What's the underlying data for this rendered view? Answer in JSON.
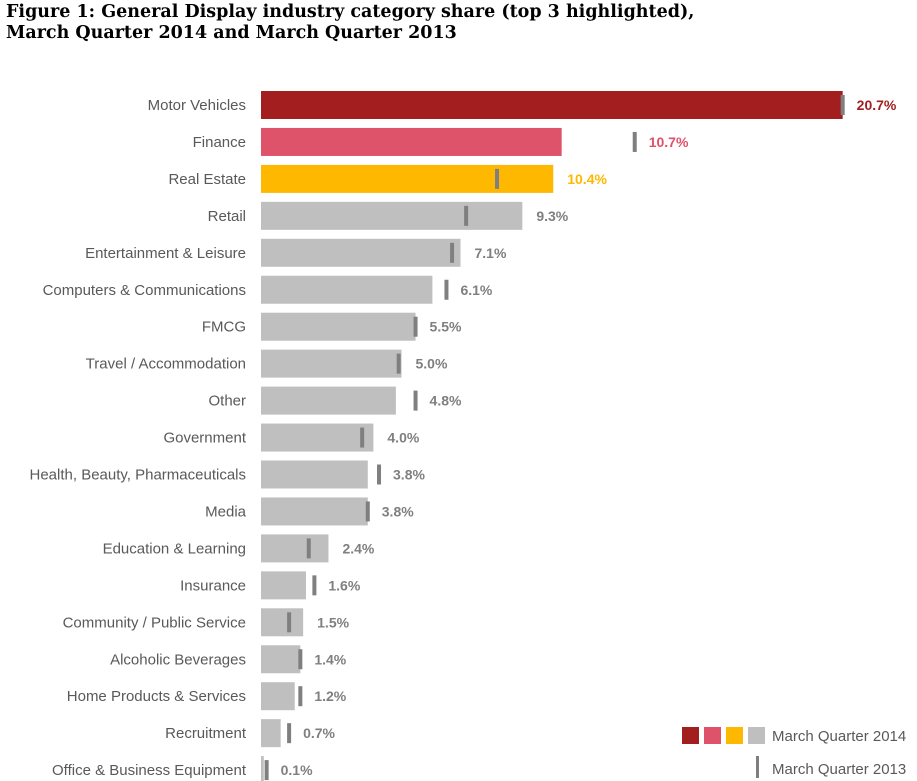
{
  "title_line1": "Figure 1: General Display industry category share (top 3 highlighted),",
  "title_line2": "March Quarter 2014 and March Quarter 2013",
  "chart_data": {
    "type": "bar",
    "orientation": "horizontal",
    "unit": "%",
    "categories": [
      "Motor Vehicles",
      "Finance",
      "Real Estate",
      "Retail",
      "Entertainment & Leisure",
      "Computers & Communications",
      "FMCG",
      "Travel / Accommodation",
      "Other",
      "Government",
      "Health, Beauty, Pharmaceuticals",
      "Media",
      "Education & Learning",
      "Insurance",
      "Community / Public Service",
      "Alcoholic Beverages",
      "Home Products & Services",
      "Recruitment",
      "Office & Business Equipment"
    ],
    "series": [
      {
        "name": "March Quarter 2014",
        "values": [
          20.7,
          10.7,
          10.4,
          9.3,
          7.1,
          6.1,
          5.5,
          5.0,
          4.8,
          4.0,
          3.8,
          3.8,
          2.4,
          1.6,
          1.5,
          1.4,
          1.2,
          0.7,
          0.1
        ],
        "labels": [
          "20.7%",
          "10.7%",
          "10.4%",
          "9.3%",
          "7.1%",
          "6.1%",
          "5.5%",
          "5.0%",
          "4.8%",
          "4.0%",
          "3.8%",
          "3.8%",
          "2.4%",
          "1.6%",
          "1.5%",
          "1.4%",
          "1.2%",
          "0.7%",
          "0.1%"
        ],
        "mark": "bar"
      },
      {
        "name": "March Quarter 2013",
        "values": [
          20.7,
          13.3,
          8.4,
          7.3,
          6.8,
          6.6,
          5.5,
          4.9,
          5.5,
          3.6,
          4.2,
          3.8,
          1.7,
          1.9,
          1.0,
          1.4,
          1.4,
          1.0,
          0.2
        ],
        "mark": "tick"
      }
    ],
    "highlight_colors": [
      "#a31f1f",
      "#de526a",
      "#ffb800"
    ],
    "base_color": "#bfbfbf",
    "tick_color": "#7f7f7f",
    "label_color": "#7f7f7f",
    "xlim": [
      0,
      22.5
    ],
    "legend": {
      "position": "bottom-right",
      "entries": [
        "March Quarter 2014",
        "March Quarter 2013"
      ]
    }
  }
}
